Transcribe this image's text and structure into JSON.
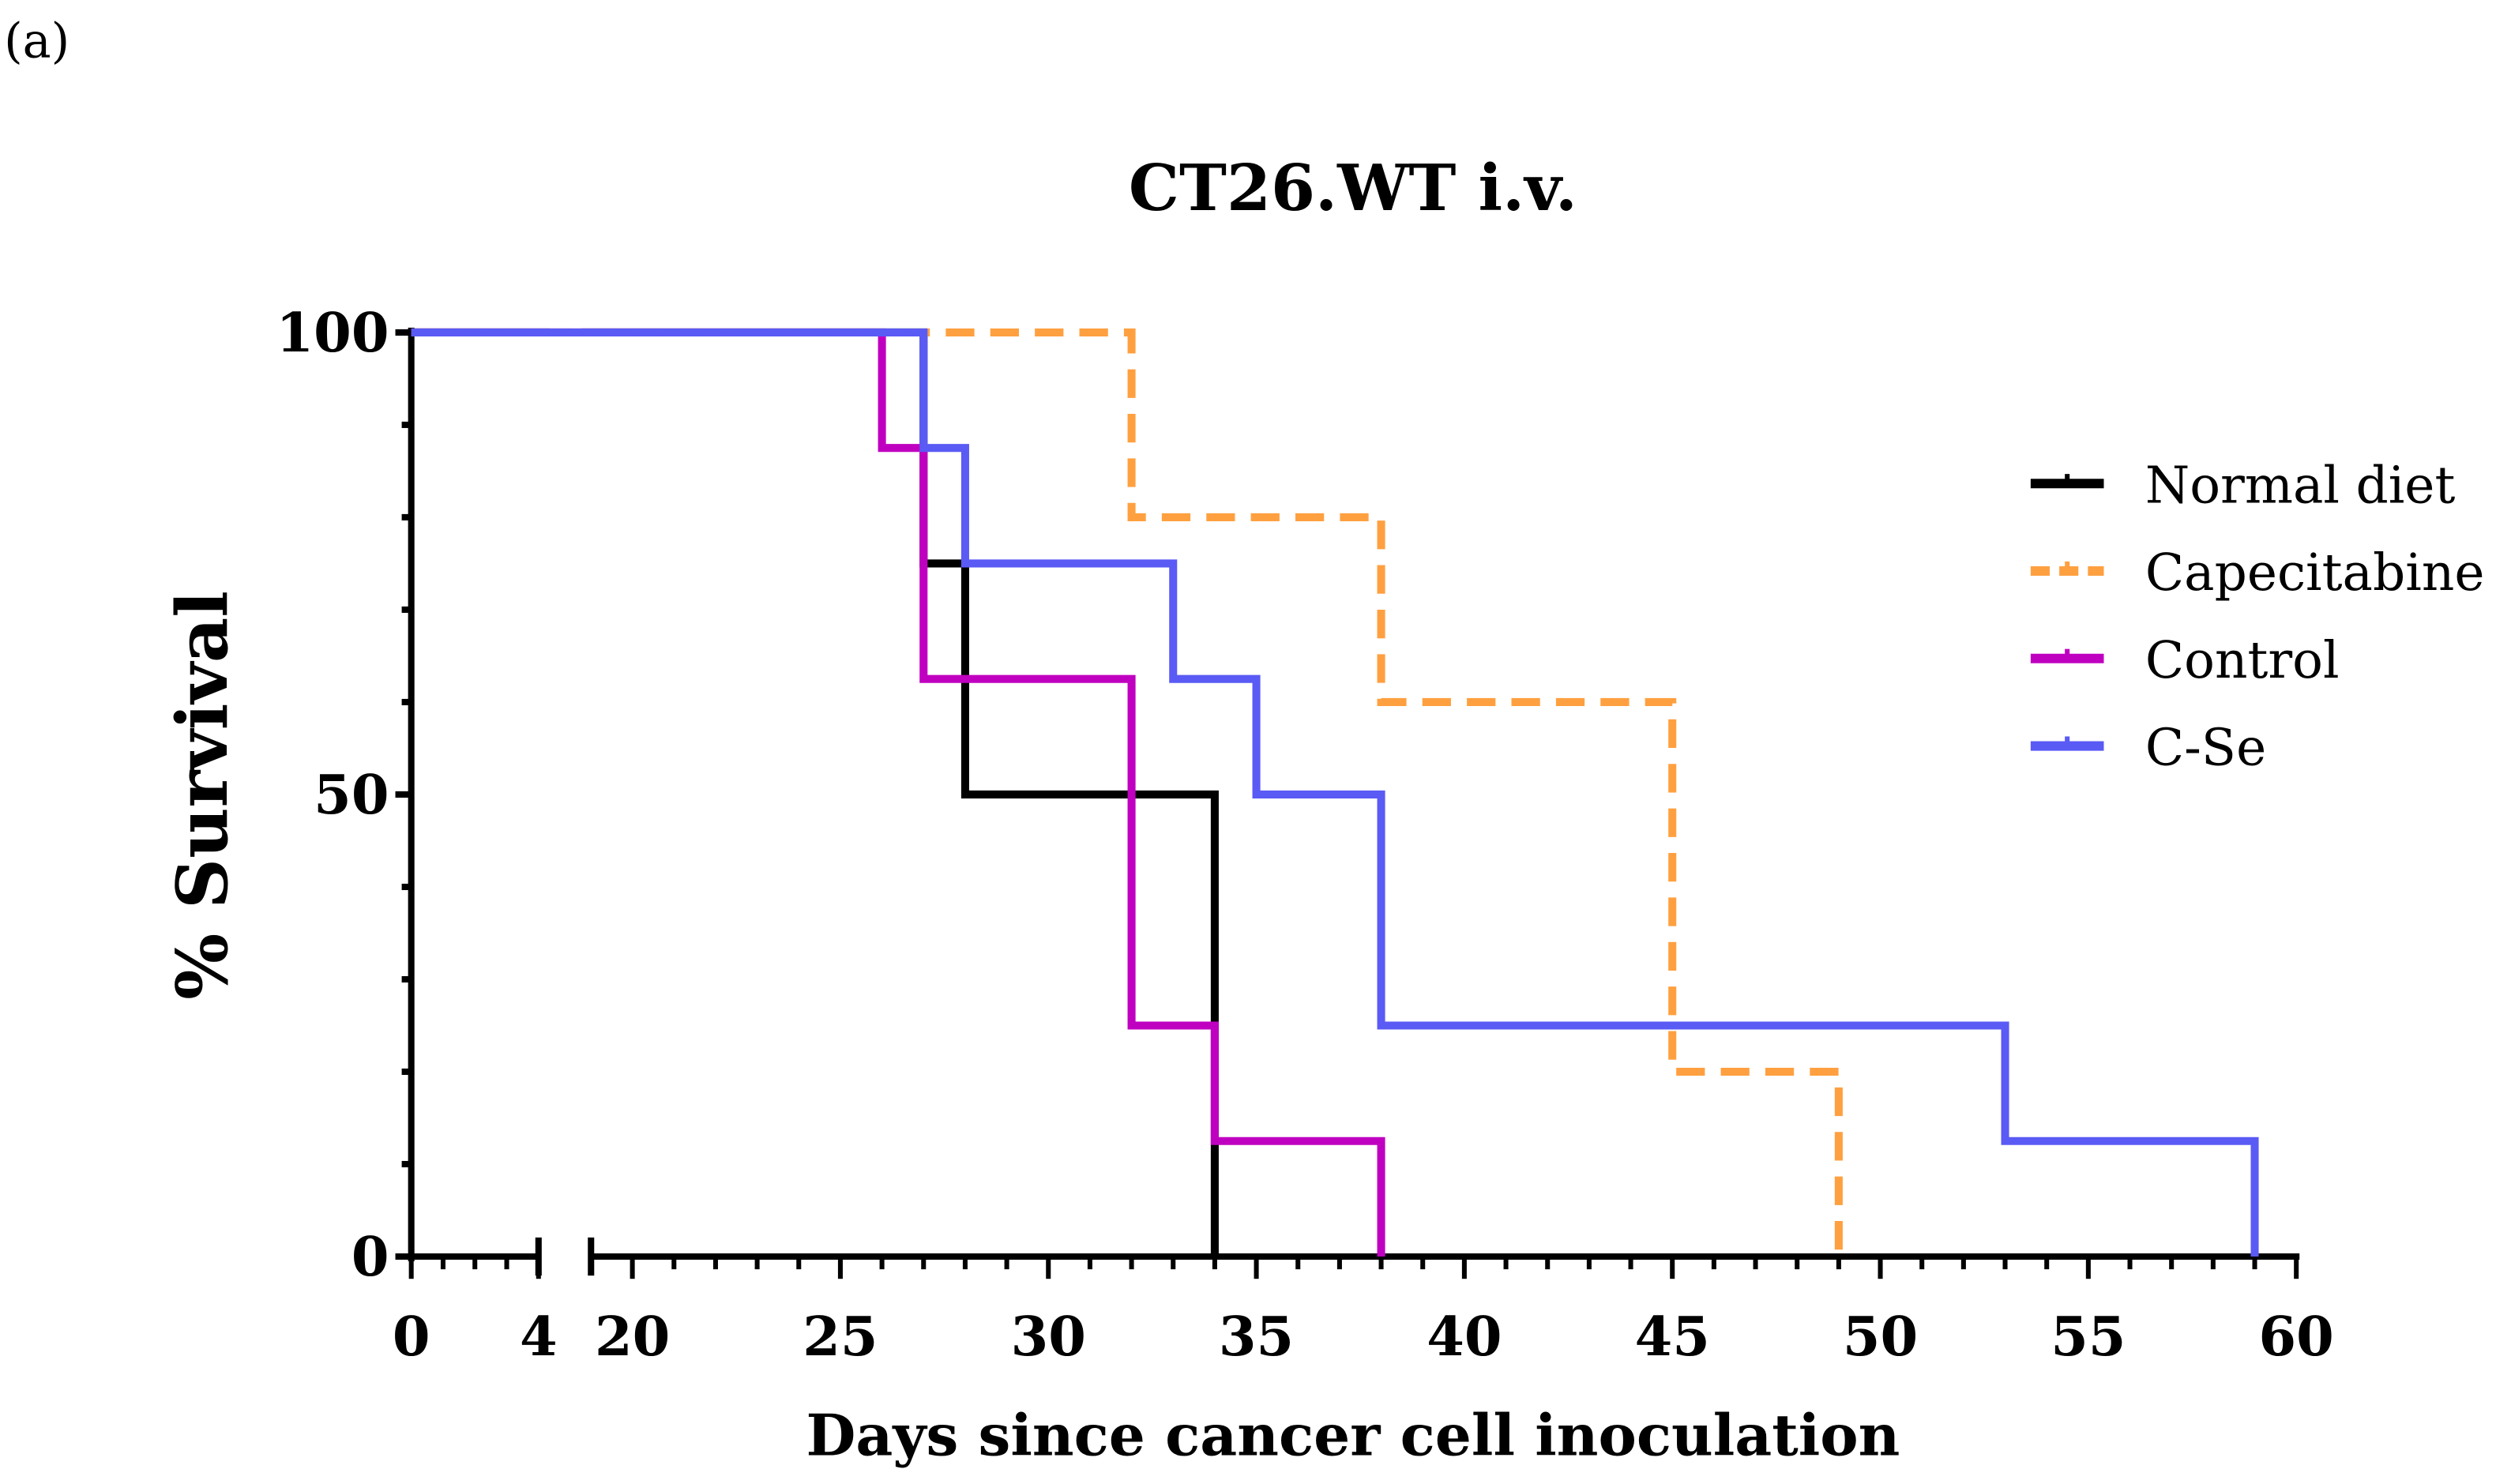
{
  "panel_label": "(a)",
  "chart_data": {
    "type": "line",
    "subtype": "kaplan-meier step",
    "title": "CT26.WT i.v.",
    "xlabel": "Days since cancer cell inoculation",
    "ylabel": "% Survival",
    "x_break": [
      4,
      20
    ],
    "xlim": [
      0,
      60
    ],
    "ylim": [
      0,
      100
    ],
    "x_ticks": [
      0,
      4,
      20,
      25,
      30,
      35,
      40,
      45,
      50,
      55,
      60
    ],
    "y_ticks": [
      0,
      50,
      100
    ],
    "legend_position": "right",
    "series": [
      {
        "name": "Normal diet",
        "color": "#000000",
        "dashed": false,
        "steps": [
          [
            0,
            100
          ],
          [
            27,
            75
          ],
          [
            28,
            50
          ],
          [
            34,
            0
          ]
        ]
      },
      {
        "name": "Capecitabine",
        "color": "#FFA040",
        "dashed": true,
        "steps": [
          [
            0,
            100
          ],
          [
            32,
            80
          ],
          [
            38,
            60
          ],
          [
            45,
            20
          ],
          [
            49,
            0
          ]
        ]
      },
      {
        "name": "Control",
        "color": "#C000C0",
        "dashed": false,
        "steps": [
          [
            0,
            100
          ],
          [
            26,
            87.5
          ],
          [
            27,
            62.5
          ],
          [
            32,
            25
          ],
          [
            34,
            12.5
          ],
          [
            38,
            0
          ]
        ]
      },
      {
        "name": "C-Se",
        "color": "#5A5AF5",
        "dashed": false,
        "steps": [
          [
            0,
            100
          ],
          [
            27,
            87.5
          ],
          [
            28,
            75
          ],
          [
            33,
            62.5
          ],
          [
            35,
            50
          ],
          [
            38,
            25
          ],
          [
            53,
            12.5
          ],
          [
            59,
            0
          ]
        ]
      }
    ]
  }
}
